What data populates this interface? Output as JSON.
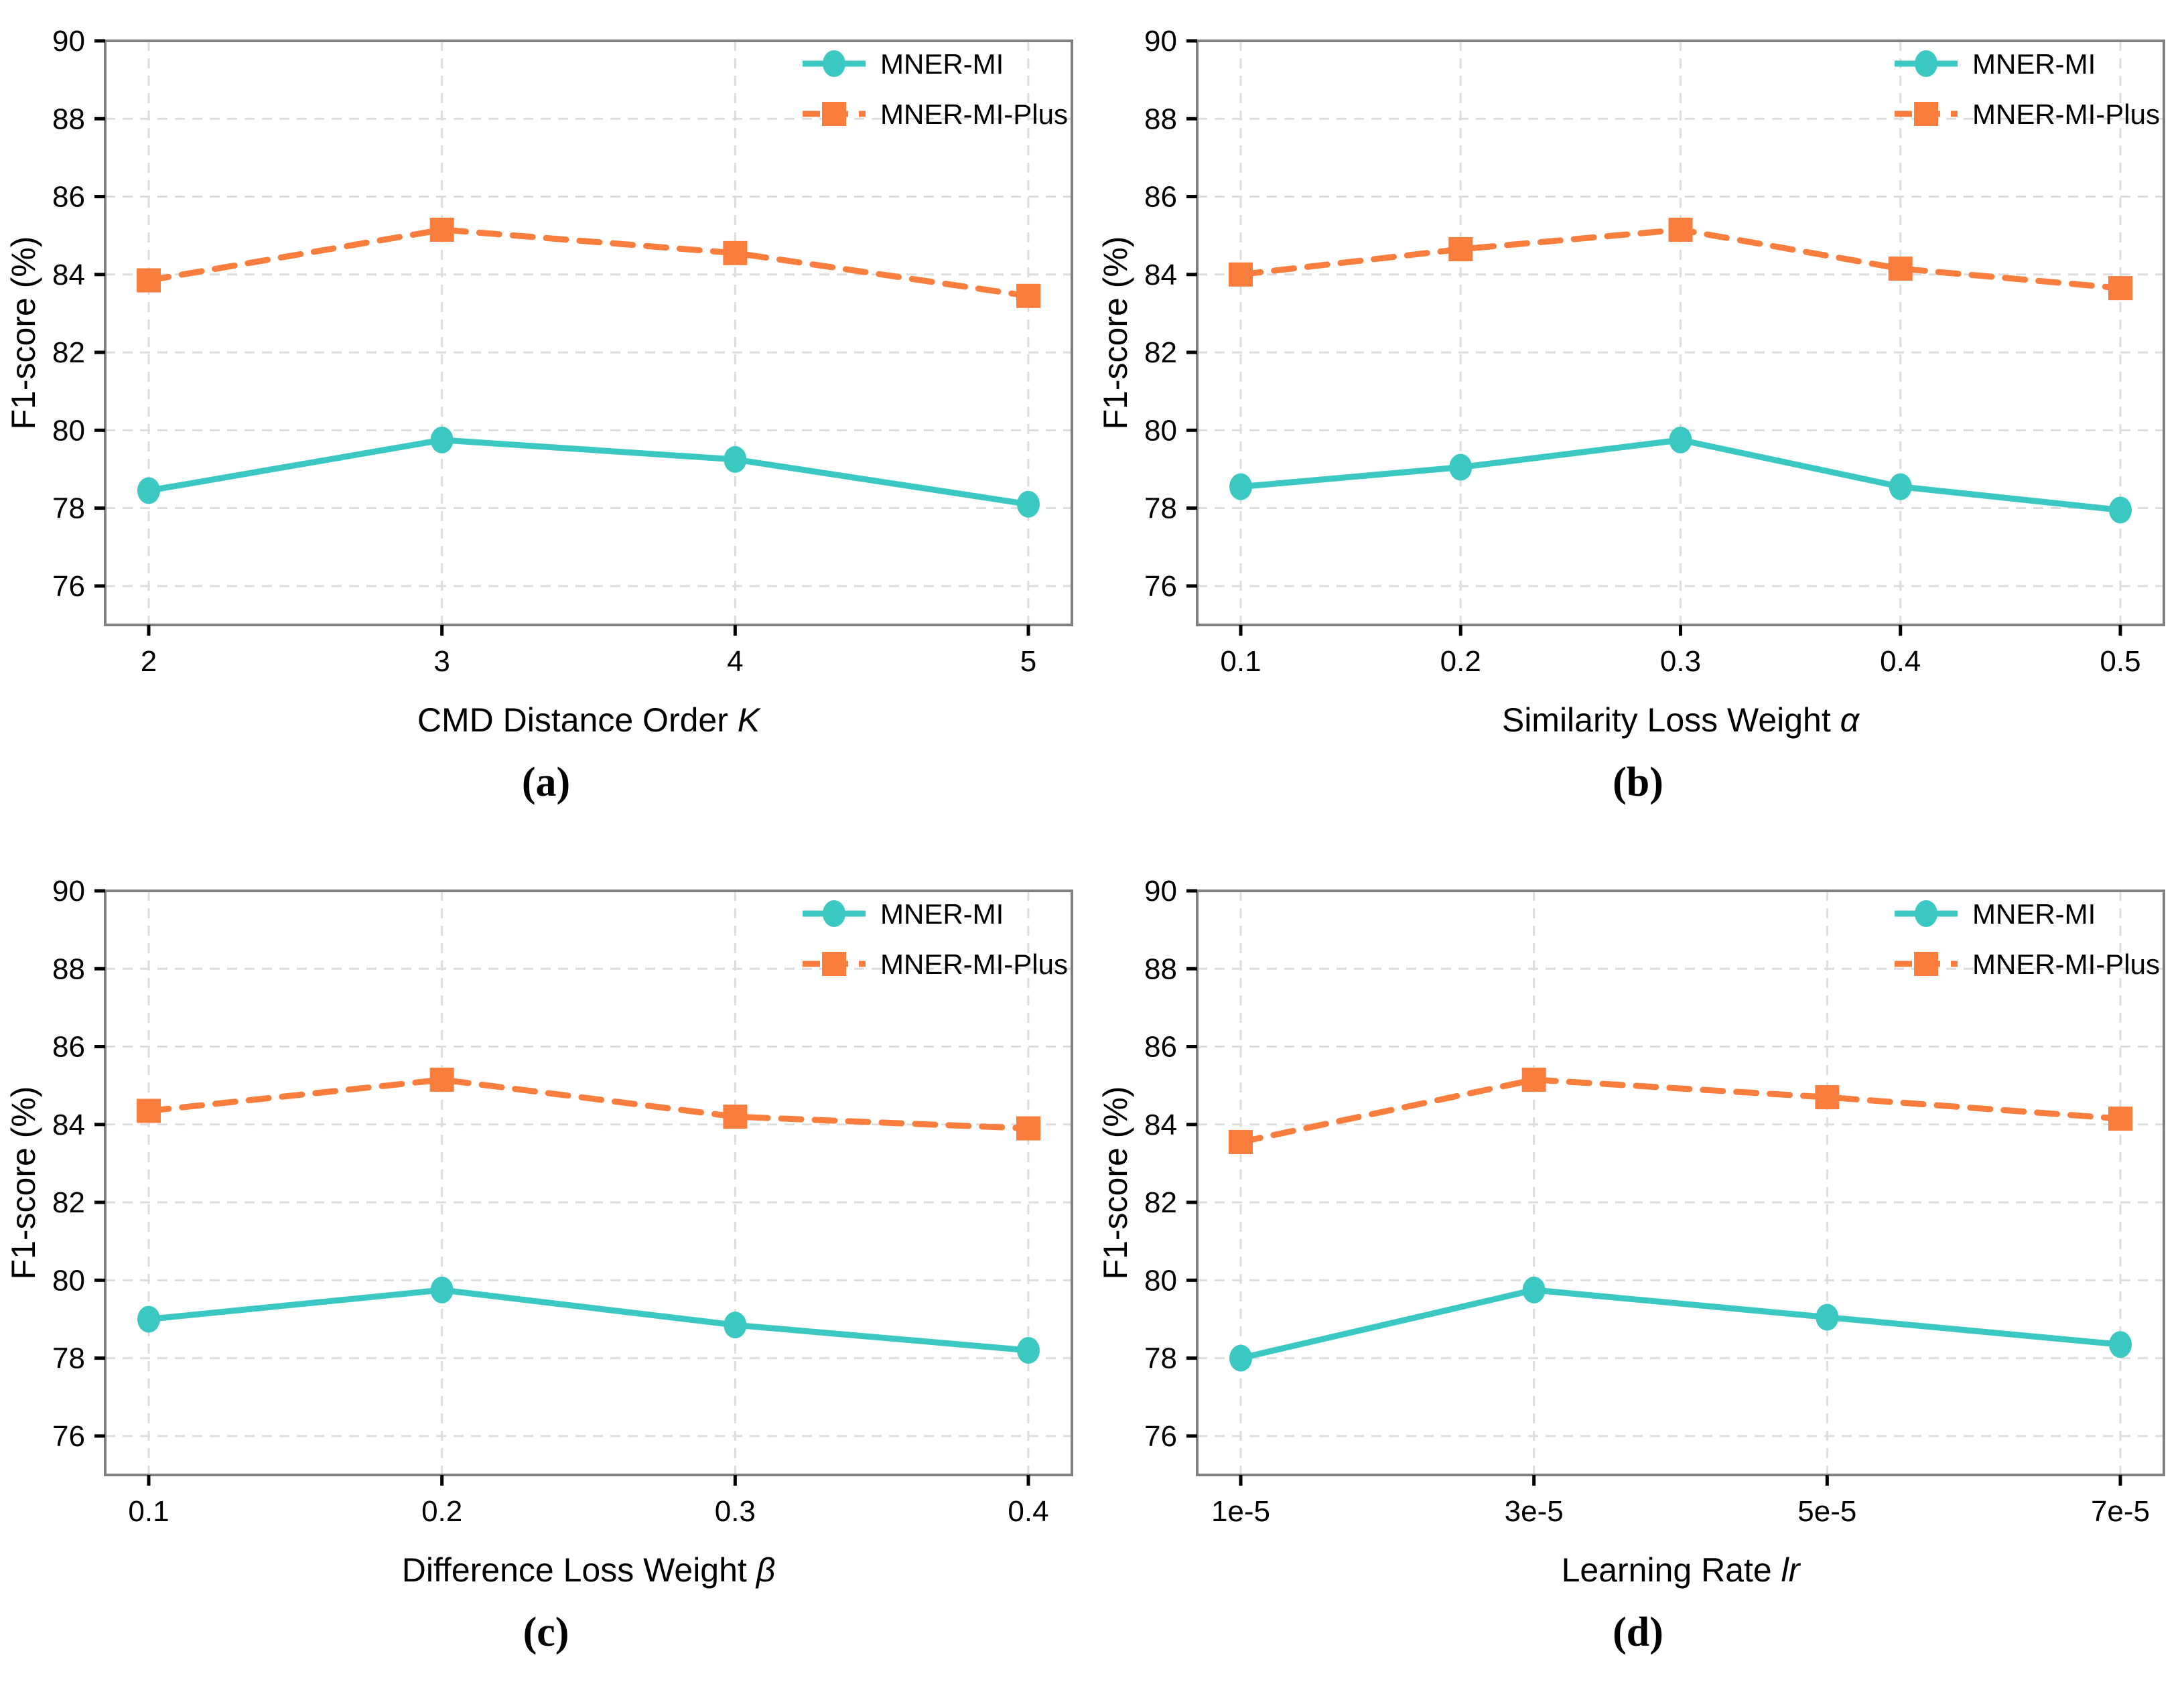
{
  "figure": {
    "ylabel": "F1-score (%)",
    "captions": [
      "(a)",
      "(b)",
      "(c)",
      "(d)"
    ]
  },
  "style": {
    "background": "#FFFFFF",
    "grid_color": "#DDDDDD",
    "spine_color": "#808080",
    "tick_color": "#000000",
    "text_color": "#000000",
    "series": [
      {
        "name": "MNER-MI",
        "color": "#3BC8C2",
        "marker": "circle",
        "line": "solid"
      },
      {
        "name": "MNER-MI-Plus",
        "color": "#F97E3D",
        "marker": "square",
        "line": "dashed"
      }
    ]
  },
  "chart_data": [
    {
      "id": "a",
      "type": "line",
      "caption": "(a)",
      "categories": [
        "2",
        "3",
        "4",
        "5"
      ],
      "xlabel": "CMD Distance Order",
      "xlabel_var": "K",
      "ylabel": "F1-score (%)",
      "ylim": [
        75,
        90
      ],
      "yticks": [
        76,
        78,
        80,
        82,
        84,
        86,
        88,
        90
      ],
      "grid": true,
      "legend_position": "upper right",
      "legend": [
        "MNER-MI",
        "MNER-MI-Plus"
      ],
      "series": [
        {
          "name": "MNER-MI",
          "values": [
            78.45,
            79.75,
            79.25,
            78.1
          ]
        },
        {
          "name": "MNER-MI-Plus",
          "values": [
            83.85,
            85.15,
            84.55,
            83.45
          ]
        }
      ]
    },
    {
      "id": "b",
      "type": "line",
      "caption": "(b)",
      "categories": [
        "0.1",
        "0.2",
        "0.3",
        "0.4",
        "0.5"
      ],
      "xlabel": "Similarity Loss Weight",
      "xlabel_var": "α",
      "ylabel": "F1-score (%)",
      "ylim": [
        75,
        90
      ],
      "yticks": [
        76,
        78,
        80,
        82,
        84,
        86,
        88,
        90
      ],
      "grid": true,
      "legend_position": "upper right",
      "legend": [
        "MNER-MI",
        "MNER-MI-Plus"
      ],
      "series": [
        {
          "name": "MNER-MI",
          "values": [
            78.55,
            79.05,
            79.75,
            78.55,
            77.95
          ]
        },
        {
          "name": "MNER-MI-Plus",
          "values": [
            84.0,
            84.65,
            85.15,
            84.15,
            83.65
          ]
        }
      ]
    },
    {
      "id": "c",
      "type": "line",
      "caption": "(c)",
      "categories": [
        "0.1",
        "0.2",
        "0.3",
        "0.4"
      ],
      "xlabel": "Difference Loss Weight",
      "xlabel_var": "β",
      "ylabel": "F1-score (%)",
      "ylim": [
        75,
        90
      ],
      "yticks": [
        76,
        78,
        80,
        82,
        84,
        86,
        88,
        90
      ],
      "grid": true,
      "legend_position": "upper right",
      "legend": [
        "MNER-MI",
        "MNER-MI-Plus"
      ],
      "series": [
        {
          "name": "MNER-MI",
          "values": [
            79.0,
            79.75,
            78.85,
            78.2
          ]
        },
        {
          "name": "MNER-MI-Plus",
          "values": [
            84.35,
            85.15,
            84.2,
            83.9
          ]
        }
      ]
    },
    {
      "id": "d",
      "type": "line",
      "caption": "(d)",
      "categories": [
        "1e-5",
        "3e-5",
        "5e-5",
        "7e-5"
      ],
      "xlabel": "Learning Rate",
      "xlabel_var": "lr",
      "ylabel": "F1-score (%)",
      "ylim": [
        75,
        90
      ],
      "yticks": [
        76,
        78,
        80,
        82,
        84,
        86,
        88,
        90
      ],
      "grid": true,
      "legend_position": "upper right",
      "legend": [
        "MNER-MI",
        "MNER-MI-Plus"
      ],
      "series": [
        {
          "name": "MNER-MI",
          "values": [
            78.0,
            79.75,
            79.05,
            78.35
          ]
        },
        {
          "name": "MNER-MI-Plus",
          "values": [
            83.55,
            85.15,
            84.7,
            84.15
          ]
        }
      ]
    }
  ]
}
